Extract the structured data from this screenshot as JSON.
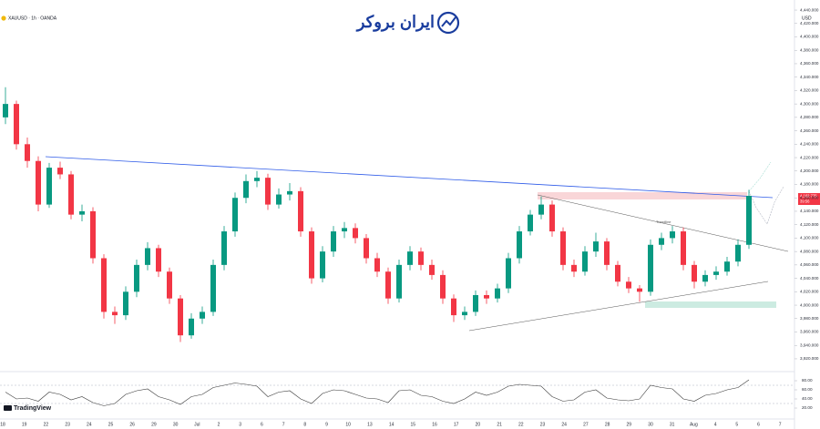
{
  "chart_data": {
    "type": "candlestick",
    "title": "XAUUSD · 1h · OANDA",
    "currency": "USD",
    "brand": "ایران بروکر",
    "footer": "TradingView",
    "annotation": "Trendline",
    "price_label": "4,162.775",
    "countdown": "39:56",
    "up_color": "#089981",
    "down_color": "#f23645",
    "grid": false,
    "ylim": [
      3905,
      4455
    ],
    "yticks": [
      {
        "value": 3920,
        "label": "3,920.000"
      },
      {
        "value": 3940,
        "label": "3,940.000"
      },
      {
        "value": 3960,
        "label": "3,960.000"
      },
      {
        "value": 3980,
        "label": "3,980.000"
      },
      {
        "value": 4000,
        "label": "4,000.000"
      },
      {
        "value": 4020,
        "label": "4,020.000"
      },
      {
        "value": 4040,
        "label": "4,040.000"
      },
      {
        "value": 4060,
        "label": "4,060.000"
      },
      {
        "value": 4080,
        "label": "4,080.000"
      },
      {
        "value": 4100,
        "label": "4,100.000"
      },
      {
        "value": 4120,
        "label": "4,120.000"
      },
      {
        "value": 4140,
        "label": "4,140.000"
      },
      {
        "value": 4160,
        "label": "4,160.000"
      },
      {
        "value": 4180,
        "label": "4,180.000"
      },
      {
        "value": 4200,
        "label": "4,200.000"
      },
      {
        "value": 4220,
        "label": "4,220.000"
      },
      {
        "value": 4240,
        "label": "4,240.000"
      },
      {
        "value": 4260,
        "label": "4,260.000"
      },
      {
        "value": 4280,
        "label": "4,280.000"
      },
      {
        "value": 4300,
        "label": "4,300.000"
      },
      {
        "value": 4320,
        "label": "4,320.000"
      },
      {
        "value": 4340,
        "label": "4,340.000"
      },
      {
        "value": 4360,
        "label": "4,360.000"
      },
      {
        "value": 4380,
        "label": "4,380.000"
      },
      {
        "value": 4400,
        "label": "4,400.000"
      },
      {
        "value": 4420,
        "label": "4,420.000"
      },
      {
        "value": 4440,
        "label": "4,440.000"
      }
    ],
    "x_labels": [
      "18",
      "19",
      "22",
      "23",
      "24",
      "25",
      "26",
      "29",
      "30",
      "Jul",
      "2",
      "3",
      "6",
      "7",
      "8",
      "9",
      "10",
      "13",
      "14",
      "15",
      "16",
      "17",
      "20",
      "21",
      "22",
      "23",
      "24",
      "27",
      "28",
      "29",
      "30",
      "31",
      "Aug",
      "4",
      "5",
      "6",
      "7"
    ],
    "candles": [
      [
        4280,
        4325,
        4270,
        4300
      ],
      [
        4300,
        4305,
        4232,
        4240
      ],
      [
        4240,
        4250,
        4205,
        4215
      ],
      [
        4215,
        4222,
        4140,
        4150
      ],
      [
        4150,
        4212,
        4145,
        4205
      ],
      [
        4205,
        4214,
        4188,
        4195
      ],
      [
        4195,
        4200,
        4128,
        4135
      ],
      [
        4135,
        4150,
        4125,
        4140
      ],
      [
        4140,
        4146,
        4062,
        4070
      ],
      [
        4070,
        4076,
        3980,
        3990
      ],
      [
        3990,
        3998,
        3972,
        3985
      ],
      [
        3985,
        4028,
        3978,
        4020
      ],
      [
        4020,
        4068,
        4012,
        4060
      ],
      [
        4060,
        4094,
        4052,
        4085
      ],
      [
        4085,
        4090,
        4042,
        4050
      ],
      [
        4050,
        4056,
        4002,
        4010
      ],
      [
        4010,
        4015,
        3945,
        3955
      ],
      [
        3955,
        3988,
        3950,
        3980
      ],
      [
        3980,
        3998,
        3972,
        3990
      ],
      [
        3990,
        4068,
        3984,
        4060
      ],
      [
        4060,
        4118,
        4052,
        4110
      ],
      [
        4110,
        4168,
        4102,
        4160
      ],
      [
        4160,
        4195,
        4152,
        4185
      ],
      [
        4185,
        4200,
        4176,
        4190
      ],
      [
        4190,
        4196,
        4142,
        4150
      ],
      [
        4150,
        4174,
        4144,
        4165
      ],
      [
        4165,
        4182,
        4156,
        4170
      ],
      [
        4170,
        4176,
        4102,
        4110
      ],
      [
        4110,
        4116,
        4032,
        4040
      ],
      [
        4040,
        4088,
        4034,
        4080
      ],
      [
        4080,
        4118,
        4072,
        4110
      ],
      [
        4110,
        4124,
        4100,
        4115
      ],
      [
        4115,
        4122,
        4092,
        4100
      ],
      [
        4100,
        4106,
        4062,
        4070
      ],
      [
        4070,
        4078,
        4042,
        4050
      ],
      [
        4050,
        4056,
        4002,
        4010
      ],
      [
        4010,
        4068,
        4004,
        4060
      ],
      [
        4060,
        4088,
        4052,
        4080
      ],
      [
        4080,
        4086,
        4052,
        4060
      ],
      [
        4060,
        4068,
        4038,
        4045
      ],
      [
        4045,
        4052,
        4002,
        4010
      ],
      [
        4010,
        4016,
        3975,
        3985
      ],
      [
        3985,
        3998,
        3978,
        3990
      ],
      [
        3990,
        4022,
        3984,
        4015
      ],
      [
        4015,
        4022,
        4002,
        4010
      ],
      [
        4010,
        4032,
        4004,
        4025
      ],
      [
        4025,
        4078,
        4018,
        4070
      ],
      [
        4070,
        4118,
        4062,
        4110
      ],
      [
        4110,
        4142,
        4104,
        4135
      ],
      [
        4135,
        4162,
        4128,
        4150
      ],
      [
        4150,
        4156,
        4102,
        4110
      ],
      [
        4110,
        4116,
        4052,
        4060
      ],
      [
        4060,
        4068,
        4042,
        4050
      ],
      [
        4050,
        4088,
        4044,
        4080
      ],
      [
        4080,
        4108,
        4072,
        4095
      ],
      [
        4095,
        4100,
        4052,
        4060
      ],
      [
        4060,
        4066,
        4028,
        4035
      ],
      [
        4035,
        4042,
        4018,
        4025
      ],
      [
        4025,
        4030,
        4005,
        4020
      ],
      [
        4020,
        4098,
        4014,
        4090
      ],
      [
        4090,
        4108,
        4082,
        4100
      ],
      [
        4100,
        4118,
        4092,
        4110
      ],
      [
        4110,
        4116,
        4052,
        4060
      ],
      [
        4060,
        4066,
        4025,
        4035
      ],
      [
        4035,
        4052,
        4028,
        4045
      ],
      [
        4045,
        4058,
        4038,
        4050
      ],
      [
        4050,
        4072,
        4044,
        4065
      ],
      [
        4065,
        4098,
        4058,
        4090
      ],
      [
        4090,
        4172,
        4084,
        4163
      ]
    ],
    "rsi": {
      "color": "#3a3a3a",
      "ylim": [
        0,
        100
      ],
      "yticks": [
        {
          "value": 20,
          "label": "20.00"
        },
        {
          "value": 40,
          "label": "40.00"
        },
        {
          "value": 60,
          "label": "60.00"
        },
        {
          "value": 80,
          "label": "80.00"
        }
      ],
      "values": [
        55,
        40,
        42,
        35,
        55,
        50,
        38,
        45,
        32,
        25,
        30,
        50,
        58,
        62,
        45,
        38,
        28,
        45,
        50,
        65,
        70,
        75,
        72,
        68,
        45,
        55,
        58,
        40,
        30,
        52,
        60,
        58,
        50,
        42,
        40,
        32,
        58,
        60,
        48,
        45,
        35,
        30,
        40,
        55,
        48,
        55,
        68,
        72,
        70,
        68,
        45,
        35,
        38,
        55,
        60,
        42,
        38,
        36,
        40,
        70,
        65,
        62,
        40,
        35,
        48,
        52,
        60,
        65,
        82
      ]
    }
  }
}
